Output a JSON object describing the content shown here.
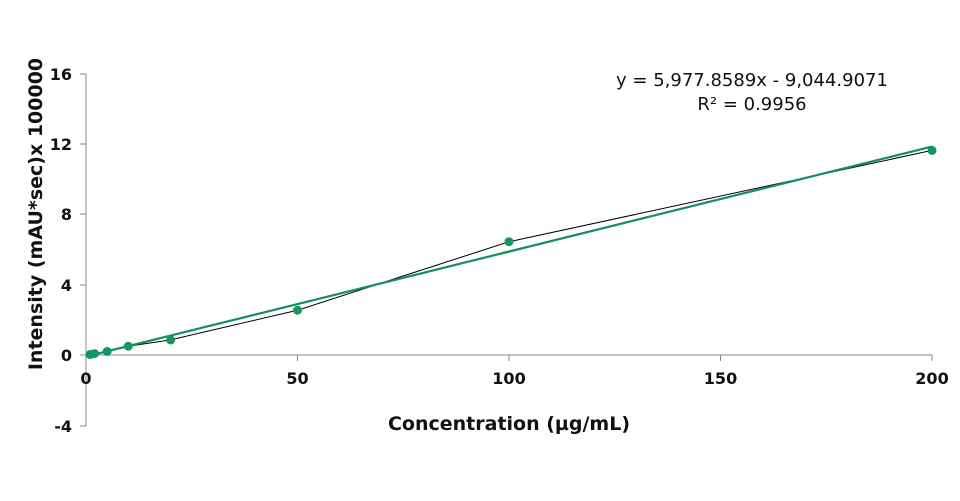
{
  "chart_data": {
    "type": "scatter",
    "title": "",
    "xlabel": "Concentration (µg/mL)",
    "ylabel": "Intensity (mAU*sec)x 100000",
    "xlim": [
      0,
      200
    ],
    "ylim": [
      -4,
      16
    ],
    "x_ticks": [
      0,
      50,
      100,
      150,
      200
    ],
    "y_ticks": [
      -4,
      0,
      4,
      8,
      12,
      16
    ],
    "grid": false,
    "legend": "none",
    "annotations": [
      "y = 5,977.8589x - 9,044.9071",
      "R² = 0.9956"
    ],
    "series": [
      {
        "color": "#0f9960",
        "marker": "circle",
        "connector_color": "#000000",
        "x": [
          1,
          2,
          5,
          10,
          20,
          50,
          100,
          200
        ],
        "y": [
          0.03,
          0.08,
          0.2,
          0.5,
          0.86,
          2.55,
          6.45,
          11.65
        ]
      }
    ],
    "trendline": {
      "type": "linear",
      "color": "#13905a",
      "x": [
        0,
        200
      ],
      "y": [
        -0.09,
        11.87
      ]
    }
  }
}
